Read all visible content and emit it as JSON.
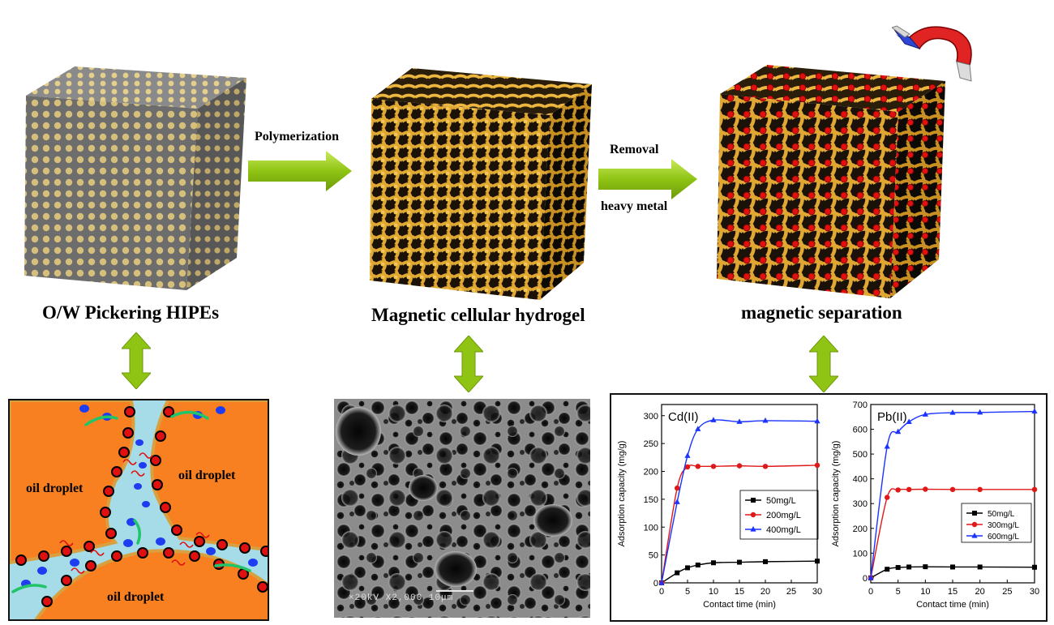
{
  "process": {
    "step1_caption": "O/W Pickering HIPEs",
    "step2_caption": "Magnetic cellular hydrogel",
    "step3_caption": "magnetic separation",
    "arrow1_label": "Polymerization",
    "arrow2_label_top": "Removal",
    "arrow2_label_bottom": "heavy metal"
  },
  "schematic": {
    "droplet_label_left": "oil droplet",
    "droplet_label_right": "oil droplet",
    "droplet_label_bottom": "oil droplet"
  },
  "sem": {
    "info_bar": "×20kV  X2,000   10μm"
  },
  "icons": {
    "magnet": "horseshoe-magnet-icon",
    "process_arrow": "green-right-arrow-icon",
    "link_arrow": "green-double-arrow-icon"
  },
  "colors": {
    "arrow_green": "#8fc414",
    "oil": "#f98020",
    "water": "#a6dce8",
    "scaffold_gold": "#d9a12f",
    "metal_red": "#e01010",
    "series_black": "#000000",
    "series_red": "#e01818",
    "series_blue": "#1a33ff"
  },
  "chart_data": [
    {
      "type": "line",
      "title": "Cd(II)",
      "xlabel": "Contact time (min)",
      "ylabel": "Adsorption capacity (mg/g)",
      "xlim": [
        0,
        30
      ],
      "ylim": [
        0,
        320
      ],
      "xticks": [
        0,
        5,
        10,
        15,
        20,
        25,
        30
      ],
      "yticks": [
        0,
        50,
        100,
        150,
        200,
        250,
        300
      ],
      "legend_position": "right-middle",
      "series": [
        {
          "name": "50mg/L",
          "color": "#000000",
          "marker": "square",
          "x": [
            0,
            3,
            5,
            7,
            10,
            15,
            20,
            30
          ],
          "y": [
            0,
            18,
            27,
            32,
            36,
            37,
            38,
            39
          ]
        },
        {
          "name": "200mg/L",
          "color": "#e01818",
          "marker": "circle",
          "x": [
            0,
            3,
            5,
            7,
            10,
            15,
            20,
            30
          ],
          "y": [
            0,
            170,
            208,
            209,
            209,
            210,
            209,
            211
          ]
        },
        {
          "name": "400mg/L",
          "color": "#1a33ff",
          "marker": "triangle",
          "x": [
            0,
            3,
            5,
            7,
            10,
            15,
            20,
            30
          ],
          "y": [
            0,
            145,
            228,
            276,
            292,
            289,
            291,
            290
          ]
        }
      ]
    },
    {
      "type": "line",
      "title": "Pb(II)",
      "xlabel": "Contact time (min)",
      "ylabel": "Adsorption capacity (mg/g)",
      "xlim": [
        0,
        30
      ],
      "ylim": [
        -20,
        700
      ],
      "xticks": [
        0,
        5,
        10,
        15,
        20,
        25,
        30
      ],
      "yticks": [
        0,
        100,
        200,
        300,
        400,
        500,
        600,
        700
      ],
      "legend_position": "right-lower",
      "series": [
        {
          "name": "50mg/L",
          "color": "#000000",
          "marker": "square",
          "x": [
            0,
            3,
            5,
            7,
            10,
            15,
            20,
            30
          ],
          "y": [
            0,
            35,
            42,
            44,
            45,
            44,
            44,
            43
          ]
        },
        {
          "name": "300mg/L",
          "color": "#e01818",
          "marker": "circle",
          "x": [
            0,
            3,
            5,
            7,
            10,
            15,
            20,
            30
          ],
          "y": [
            0,
            325,
            355,
            357,
            358,
            357,
            357,
            357
          ]
        },
        {
          "name": "600mg/L",
          "color": "#1a33ff",
          "marker": "triangle",
          "x": [
            0,
            3,
            5,
            7,
            10,
            15,
            20,
            30
          ],
          "y": [
            0,
            530,
            590,
            630,
            660,
            667,
            668,
            672
          ]
        }
      ]
    }
  ]
}
